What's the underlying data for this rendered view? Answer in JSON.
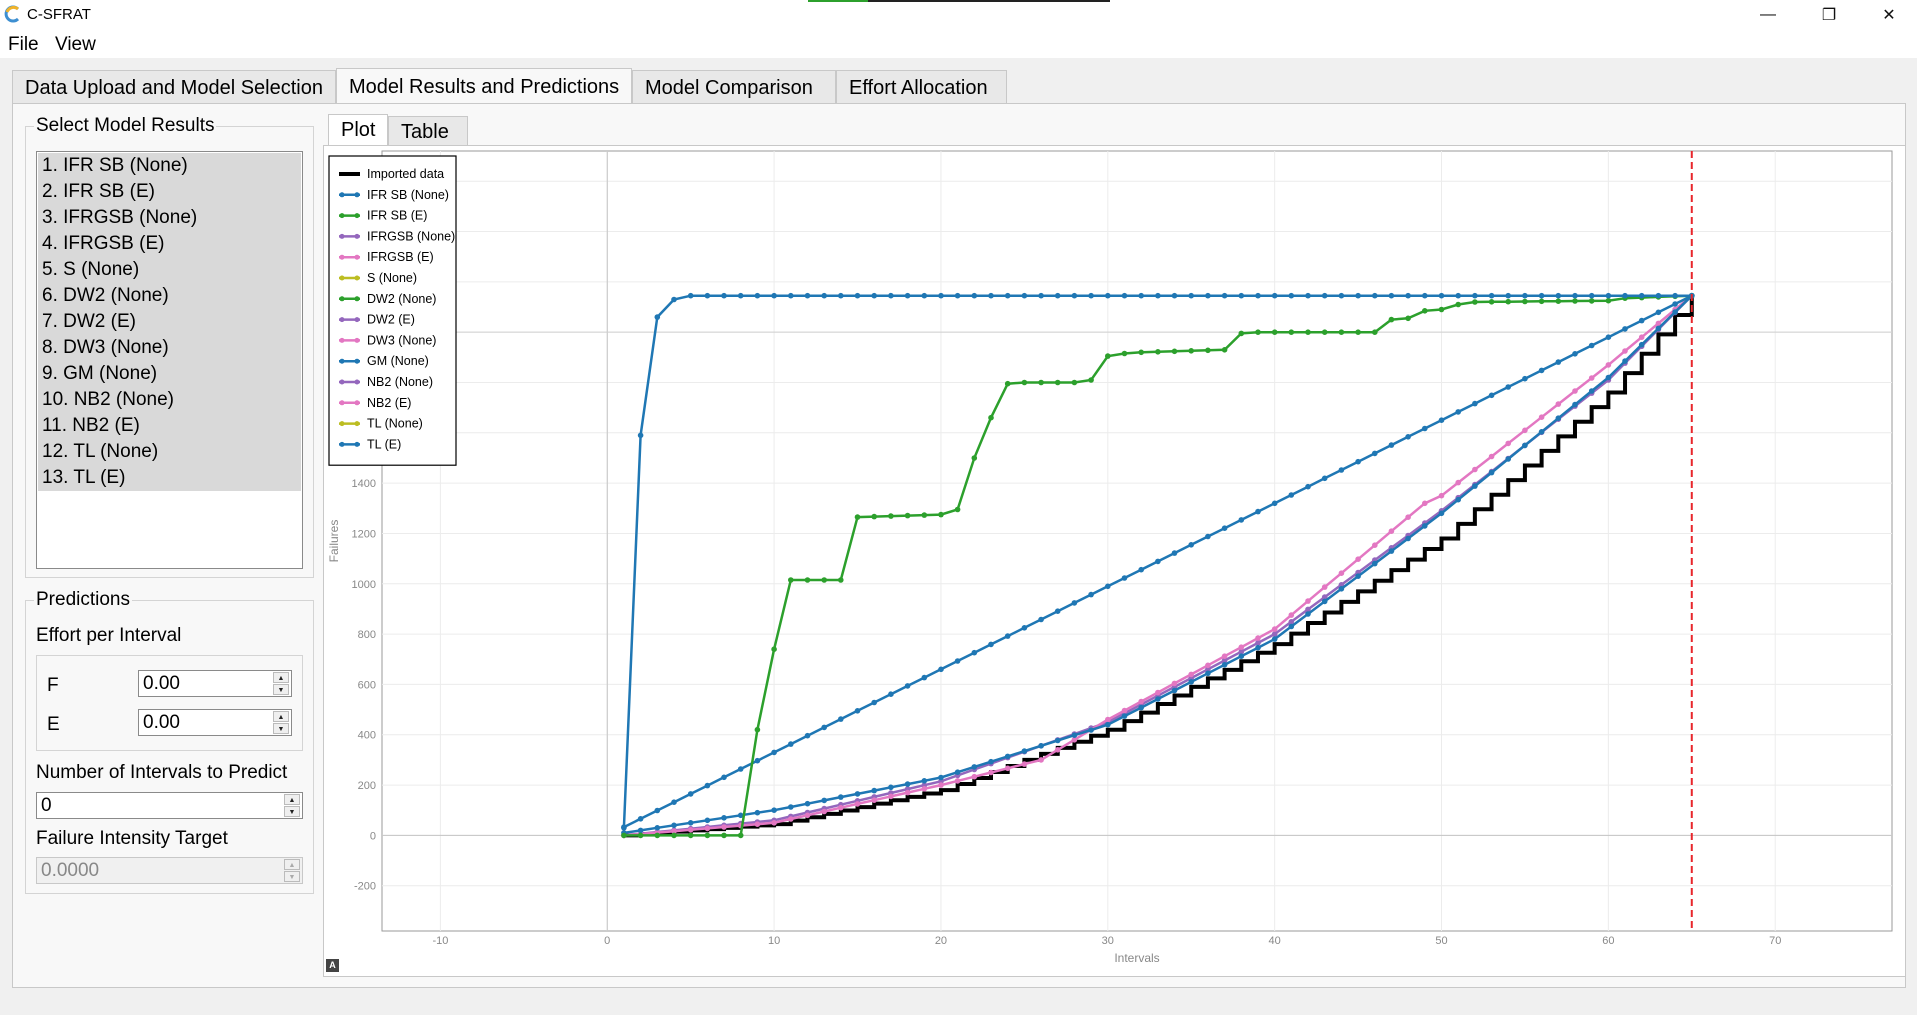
{
  "window": {
    "title": "C-SFRAT",
    "minimize_glyph": "—",
    "restore_glyph": "❐",
    "close_glyph": "✕"
  },
  "menu": {
    "file": "File",
    "view": "View"
  },
  "tabs": [
    {
      "label": "Data Upload and Model Selection"
    },
    {
      "label": "Model Results and Predictions"
    },
    {
      "label": "Model Comparison"
    },
    {
      "label": "Effort Allocation"
    }
  ],
  "active_tab": 1,
  "select_model_results": {
    "title": "Select Model Results",
    "items": [
      "1. IFR SB (None)",
      "2. IFR SB (E)",
      "3. IFRGSB (None)",
      "4. IFRGSB (E)",
      "5. S (None)",
      "6. DW2 (None)",
      "7. DW2 (E)",
      "8. DW3 (None)",
      "9. GM (None)",
      "10. NB2 (None)",
      "11. NB2 (E)",
      "12. TL (None)",
      "13. TL (E)"
    ]
  },
  "predictions": {
    "title": "Predictions",
    "effort_label": "Effort per Interval",
    "f_label": "F",
    "f_value": "0.00",
    "e_label": "E",
    "e_value": "0.00",
    "intervals_label": "Number of Intervals to Predict",
    "intervals_value": "0",
    "target_label": "Failure Intensity Target",
    "target_value": "0.0000",
    "spin_up": "▲",
    "spin_down": "▼"
  },
  "subtabs": [
    {
      "label": "Plot"
    },
    {
      "label": "Table"
    }
  ],
  "autoscale_label": "A",
  "chart_data": {
    "type": "line",
    "xlabel": "Intervals",
    "ylabel": "Failures",
    "xlim": [
      -13.5,
      77
    ],
    "ylim": [
      -380,
      2720
    ],
    "xticks": [
      -10,
      0,
      10,
      20,
      30,
      40,
      50,
      60,
      70
    ],
    "yticks": [
      -200,
      0,
      200,
      400,
      600,
      800,
      1000,
      1200,
      1400,
      1600,
      1800,
      2000,
      2200,
      2400,
      2600
    ],
    "grid": true,
    "legend_position": "top-left",
    "prediction_line_x": 65,
    "colors": {
      "imported": "#000000",
      "blue": "#1f77b4",
      "green": "#2ca02c",
      "purple": "#9467bd",
      "pink": "#e377c2",
      "olive": "#bcbd22",
      "prediction_line": "#e8262b"
    },
    "legend": [
      {
        "name": "Imported data",
        "color": "#000000",
        "marker": false
      },
      {
        "name": "IFR SB (None)",
        "color": "#1f77b4",
        "marker": true
      },
      {
        "name": "IFR SB (E)",
        "color": "#2ca02c",
        "marker": true
      },
      {
        "name": "IFRGSB (None)",
        "color": "#9467bd",
        "marker": true
      },
      {
        "name": "IFRGSB (E)",
        "color": "#e377c2",
        "marker": true
      },
      {
        "name": "S (None)",
        "color": "#bcbd22",
        "marker": true
      },
      {
        "name": "DW2 (None)",
        "color": "#2ca02c",
        "marker": true
      },
      {
        "name": "DW2 (E)",
        "color": "#9467bd",
        "marker": true
      },
      {
        "name": "DW3 (None)",
        "color": "#e377c2",
        "marker": true
      },
      {
        "name": "GM (None)",
        "color": "#1f77b4",
        "marker": true
      },
      {
        "name": "NB2 (None)",
        "color": "#9467bd",
        "marker": true
      },
      {
        "name": "NB2 (E)",
        "color": "#e377c2",
        "marker": true
      },
      {
        "name": "TL (None)",
        "color": "#bcbd22",
        "marker": true
      },
      {
        "name": "TL (E)",
        "color": "#1f77b4",
        "marker": true
      }
    ],
    "series": [
      {
        "name": "IFR SB (None)",
        "kind": "saturating",
        "color": "#1f77b4",
        "x": [
          1,
          2,
          3,
          4,
          5,
          10,
          20,
          30,
          40,
          50,
          60,
          65
        ],
        "values": [
          30,
          1590,
          2060,
          2130,
          2145,
          2145,
          2145,
          2145,
          2145,
          2145,
          2145,
          2145
        ]
      },
      {
        "name": "IFR SB (E)",
        "kind": "step-fit",
        "color": "#2ca02c",
        "x": [
          1,
          8,
          9,
          10,
          11,
          14,
          15,
          20,
          21,
          22,
          23,
          24,
          25,
          28,
          29,
          30,
          31,
          32,
          37,
          38,
          39,
          46,
          47,
          48,
          49,
          50,
          51,
          52,
          60,
          61,
          65
        ],
        "values": [
          0,
          0,
          420,
          740,
          1015,
          1015,
          1265,
          1275,
          1295,
          1500,
          1660,
          1795,
          1800,
          1800,
          1810,
          1905,
          1915,
          1920,
          1930,
          1995,
          2000,
          2000,
          2050,
          2055,
          2085,
          2090,
          2110,
          2120,
          2125,
          2135,
          2145
        ]
      },
      {
        "name": "GM (None)",
        "kind": "linear",
        "color": "#1f77b4",
        "x": [
          1,
          65
        ],
        "values": [
          33,
          2145
        ]
      },
      {
        "name": "TL (E)",
        "kind": "convex",
        "color": "#1f77b4",
        "x": [
          1,
          10,
          20,
          30,
          40,
          50,
          60,
          65
        ],
        "values": [
          10,
          100,
          230,
          440,
          780,
          1280,
          1820,
          2145
        ]
      },
      {
        "name": "Imported data",
        "kind": "cumulative-steps",
        "color": "#000000",
        "x": [
          1,
          10,
          20,
          30,
          40,
          50,
          60,
          65
        ],
        "values": [
          0,
          45,
          180,
          420,
          760,
          1180,
          1760,
          2145
        ]
      },
      {
        "name": "DW3 (None)",
        "kind": "convex",
        "color": "#e377c2",
        "x": [
          1,
          10,
          20,
          26,
          30,
          40,
          49,
          50,
          60,
          65
        ],
        "values": [
          0,
          50,
          200,
          300,
          460,
          820,
          1320,
          1350,
          1870,
          2145
        ]
      },
      {
        "name": "NB2 (None)",
        "kind": "convex",
        "color": "#9467bd",
        "x": [
          1,
          10,
          20,
          30,
          40,
          50,
          60,
          65
        ],
        "values": [
          0,
          60,
          215,
          450,
          800,
          1290,
          1810,
          2145
        ]
      }
    ]
  }
}
